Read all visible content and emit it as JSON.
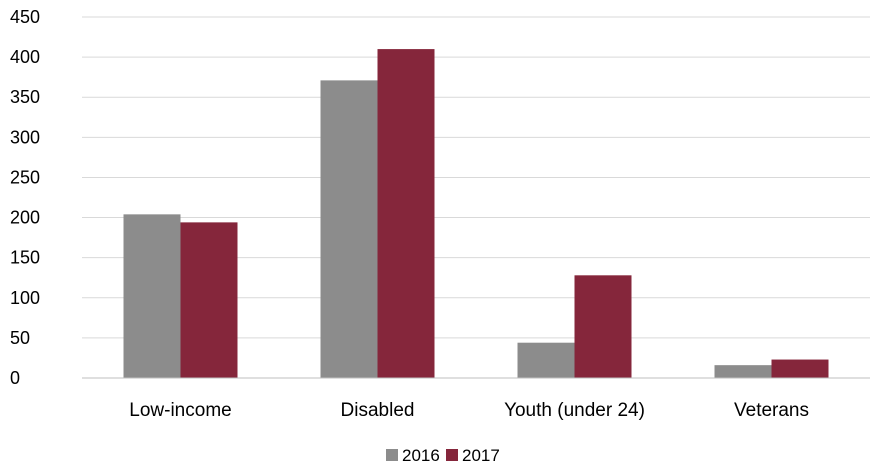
{
  "chart_data": {
    "type": "bar",
    "title": "",
    "xlabel": "",
    "ylabel": "",
    "categories": [
      "Low-income",
      "Disabled",
      "Youth (under 24)",
      "Veterans"
    ],
    "series": [
      {
        "name": "2016",
        "color": "#8c8c8c",
        "values": [
          204,
          371,
          44,
          16
        ]
      },
      {
        "name": "2017",
        "color": "#85263b",
        "values": [
          194,
          410,
          128,
          23
        ]
      }
    ],
    "ylim": [
      0,
      450
    ],
    "yticks": [
      "0",
      "50",
      "100",
      "150",
      "200",
      "250",
      "300",
      "350",
      "400",
      "450"
    ],
    "grid": true,
    "legend_position": "bottom-center"
  }
}
